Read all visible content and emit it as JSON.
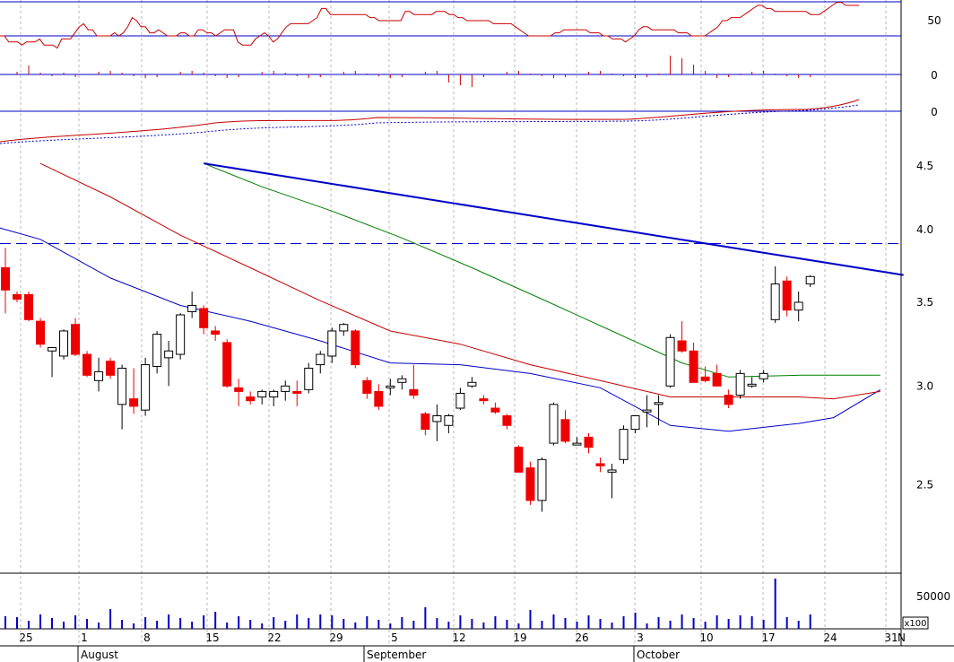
{
  "chart_data": {
    "type": "candlestick",
    "price_axis": {
      "ticks": [
        "4.5",
        "4.0",
        "3.5",
        "3.0",
        "2.5"
      ],
      "range": [
        2.15,
        4.65
      ]
    },
    "horizontal_level": 3.9,
    "x_axis": {
      "day_labels": [
        "25",
        "1",
        "8",
        "15",
        "22",
        "29",
        "5",
        "12",
        "19",
        "26",
        "3",
        "10",
        "17",
        "24",
        "31"
      ],
      "month_labels": [
        "August",
        "September",
        "October"
      ],
      "trailing_label": "N"
    },
    "indicator_axes": {
      "rsi_ticks": [
        "50"
      ],
      "macd_hist_ticks": [
        "0"
      ],
      "macd_ticks": [
        "0"
      ]
    },
    "volume_axis": {
      "ticks": [
        "50000"
      ],
      "unit_label": "x100"
    },
    "candles": [
      [
        3.73,
        3.87,
        3.43,
        3.58
      ],
      [
        3.55,
        3.57,
        3.5,
        3.52
      ],
      [
        3.55,
        3.57,
        3.38,
        3.39
      ],
      [
        3.38,
        3.4,
        3.22,
        3.24
      ],
      [
        3.2,
        3.22,
        3.05,
        3.22
      ],
      [
        3.17,
        3.33,
        3.15,
        3.32
      ],
      [
        3.36,
        3.4,
        3.17,
        3.18
      ],
      [
        3.18,
        3.2,
        3.05,
        3.06
      ],
      [
        3.03,
        3.16,
        2.97,
        3.08
      ],
      [
        3.14,
        3.16,
        3.04,
        3.06
      ],
      [
        2.9,
        3.12,
        2.77,
        3.1
      ],
      [
        2.93,
        3.1,
        2.85,
        2.89
      ],
      [
        2.87,
        3.16,
        2.84,
        3.12
      ],
      [
        3.11,
        3.32,
        3.07,
        3.3
      ],
      [
        3.16,
        3.26,
        3.0,
        3.2
      ],
      [
        3.18,
        3.43,
        3.15,
        3.42
      ],
      [
        3.44,
        3.57,
        3.4,
        3.48
      ],
      [
        3.46,
        3.48,
        3.3,
        3.34
      ],
      [
        3.32,
        3.35,
        3.26,
        3.3
      ],
      [
        3.25,
        3.27,
        2.99,
        3.0
      ],
      [
        2.99,
        3.04,
        2.89,
        2.97
      ],
      [
        2.94,
        2.97,
        2.9,
        2.92
      ],
      [
        2.94,
        2.98,
        2.9,
        2.97
      ],
      [
        2.94,
        2.98,
        2.89,
        2.97
      ],
      [
        2.97,
        3.03,
        2.92,
        3.0
      ],
      [
        2.97,
        3.03,
        2.89,
        2.96
      ],
      [
        2.98,
        3.13,
        2.96,
        3.1
      ],
      [
        3.12,
        3.2,
        3.07,
        3.18
      ],
      [
        3.17,
        3.34,
        3.13,
        3.32
      ],
      [
        3.32,
        3.37,
        3.29,
        3.36
      ],
      [
        3.32,
        3.33,
        3.1,
        3.12
      ],
      [
        3.03,
        3.05,
        2.93,
        2.96
      ],
      [
        2.97,
        3.01,
        2.87,
        2.89
      ],
      [
        2.99,
        3.04,
        2.95,
        3.0
      ],
      [
        3.02,
        3.06,
        2.98,
        3.04
      ],
      [
        2.98,
        3.12,
        2.93,
        2.95
      ],
      [
        2.85,
        2.86,
        2.74,
        2.77
      ],
      [
        2.81,
        2.9,
        2.71,
        2.84
      ],
      [
        2.79,
        2.85,
        2.75,
        2.84
      ],
      [
        2.88,
        2.99,
        2.87,
        2.96
      ],
      [
        3.0,
        3.05,
        2.99,
        3.02
      ],
      [
        2.93,
        2.95,
        2.9,
        2.92
      ],
      [
        2.88,
        2.91,
        2.85,
        2.86
      ],
      [
        2.84,
        2.85,
        2.77,
        2.79
      ],
      [
        2.68,
        2.69,
        2.56,
        2.56
      ],
      [
        2.58,
        2.61,
        2.41,
        2.43
      ],
      [
        2.43,
        2.63,
        2.38,
        2.62
      ],
      [
        2.7,
        2.91,
        2.69,
        2.9
      ],
      [
        2.82,
        2.87,
        2.7,
        2.71
      ],
      [
        2.7,
        2.73,
        2.69,
        2.7
      ],
      [
        2.73,
        2.75,
        2.65,
        2.68
      ],
      [
        2.6,
        2.63,
        2.56,
        2.59
      ],
      [
        2.56,
        2.6,
        2.44,
        2.57
      ],
      [
        2.62,
        2.79,
        2.6,
        2.77
      ],
      [
        2.77,
        2.84,
        2.75,
        2.84
      ],
      [
        2.86,
        2.95,
        2.78,
        2.87
      ],
      [
        2.9,
        2.95,
        2.79,
        2.91
      ],
      [
        3.0,
        3.3,
        2.99,
        3.28
      ],
      [
        3.26,
        3.38,
        3.19,
        3.2
      ],
      [
        3.2,
        3.25,
        3.02,
        3.02
      ],
      [
        3.05,
        3.11,
        3.02,
        3.03
      ],
      [
        3.07,
        3.12,
        3.0,
        3.0
      ],
      [
        2.95,
        2.98,
        2.88,
        2.9
      ],
      [
        2.95,
        3.09,
        2.93,
        3.07
      ],
      [
        3.0,
        3.05,
        2.99,
        3.01
      ],
      [
        3.04,
        3.09,
        3.02,
        3.07
      ],
      [
        3.39,
        3.74,
        3.37,
        3.62
      ],
      [
        3.64,
        3.67,
        3.41,
        3.45
      ],
      [
        3.45,
        3.57,
        3.38,
        3.5
      ],
      [
        3.62,
        3.68,
        3.6,
        3.67
      ]
    ],
    "moving_averages": [
      {
        "color": "#0000c8",
        "points": [
          [
            -2,
            4.05
          ],
          [
            3,
            3.93
          ],
          [
            9,
            3.66
          ],
          [
            15,
            3.48
          ],
          [
            21,
            3.38
          ],
          [
            27,
            3.26
          ],
          [
            33,
            3.13
          ],
          [
            39,
            3.12
          ],
          [
            45,
            3.07
          ],
          [
            51,
            2.99
          ],
          [
            57,
            2.79
          ],
          [
            62,
            2.76
          ],
          [
            68,
            2.8
          ],
          [
            71,
            2.83
          ],
          [
            75,
            2.98
          ]
        ]
      },
      {
        "color": "#c80000",
        "points": [
          [
            3,
            4.52
          ],
          [
            9,
            4.25
          ],
          [
            15,
            3.96
          ],
          [
            21,
            3.73
          ],
          [
            27,
            3.51
          ],
          [
            33,
            3.32
          ],
          [
            39,
            3.24
          ],
          [
            45,
            3.12
          ],
          [
            51,
            3.03
          ],
          [
            57,
            2.94
          ],
          [
            62,
            2.94
          ],
          [
            68,
            2.94
          ],
          [
            71,
            2.93
          ],
          [
            75,
            2.97
          ]
        ]
      },
      {
        "color": "#008000",
        "points": [
          [
            17,
            4.52
          ],
          [
            22,
            4.33
          ],
          [
            28,
            4.14
          ],
          [
            34,
            3.94
          ],
          [
            40,
            3.73
          ],
          [
            46,
            3.52
          ],
          [
            52,
            3.32
          ],
          [
            58,
            3.13
          ],
          [
            62,
            3.05
          ],
          [
            68,
            3.06
          ],
          [
            75,
            3.06
          ]
        ]
      }
    ],
    "trend_line": {
      "color": "#0000c8",
      "from": [
        17,
        4.52
      ],
      "to": [
        77,
        3.68
      ]
    },
    "rsi": [
      60,
      60,
      58,
      58,
      58,
      57,
      58,
      58,
      58,
      59,
      57,
      57,
      57,
      56,
      59,
      59,
      59,
      61,
      63,
      64,
      62,
      62,
      60,
      60,
      60,
      60,
      61,
      60,
      61,
      63,
      66,
      65,
      63,
      63,
      61,
      61,
      62,
      61,
      60,
      60,
      60,
      61,
      61,
      60,
      60,
      62,
      62,
      61,
      61,
      60,
      61,
      62,
      62,
      62,
      58,
      57,
      57,
      57,
      59,
      60,
      61,
      60,
      58,
      59,
      61,
      63,
      64,
      64,
      64,
      64,
      64,
      65,
      66,
      69,
      69,
      67,
      67,
      67,
      67,
      67,
      67,
      67,
      67,
      67,
      66,
      66,
      65,
      65,
      65,
      65,
      65,
      65,
      68,
      68,
      67,
      67,
      67,
      67,
      67,
      68,
      68,
      68,
      67,
      67,
      66,
      66,
      65,
      65,
      65,
      65,
      65,
      65,
      64,
      64,
      64,
      64,
      64,
      63,
      62,
      61,
      60,
      60,
      60,
      60,
      60,
      60,
      61,
      61,
      62,
      62,
      62,
      62,
      62,
      62,
      61,
      61,
      61,
      60,
      60,
      59,
      59,
      59,
      58,
      59,
      60,
      62,
      63,
      63,
      62,
      62,
      62,
      62,
      62,
      62,
      61,
      61,
      61,
      60,
      60,
      60,
      60,
      61,
      62,
      63,
      65,
      65,
      66,
      66,
      66,
      67,
      68,
      69,
      70,
      70,
      69,
      69,
      68,
      68,
      68,
      68,
      68,
      68,
      68,
      68,
      67,
      67,
      67,
      68,
      69,
      70,
      71,
      71,
      70,
      70,
      70,
      70
    ]
  }
}
